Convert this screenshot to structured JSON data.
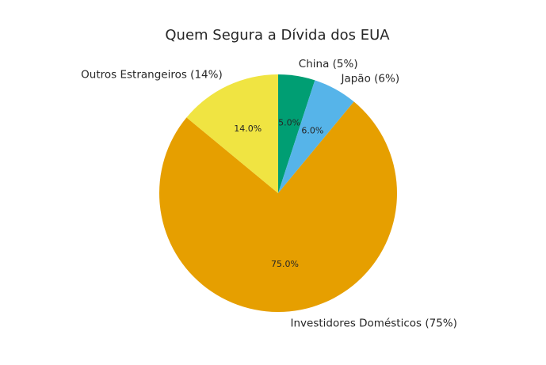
{
  "chart_data": {
    "type": "pie",
    "title": "Quem Segura a Dívida dos EUA",
    "slices": [
      {
        "label": "China (5%)",
        "value": 5.0,
        "pct_label": "5.0%",
        "color": "#009E73"
      },
      {
        "label": "Japão (6%)",
        "value": 6.0,
        "pct_label": "6.0%",
        "color": "#56B4E9"
      },
      {
        "label": "Investidores Domésticos (75%)",
        "value": 75.0,
        "pct_label": "75.0%",
        "color": "#E69F00"
      },
      {
        "label": "Outros Estrangeiros (14%)",
        "value": 14.0,
        "pct_label": "14.0%",
        "color": "#F0E442"
      }
    ],
    "start_angle_deg": 90,
    "direction": "clockwise"
  }
}
